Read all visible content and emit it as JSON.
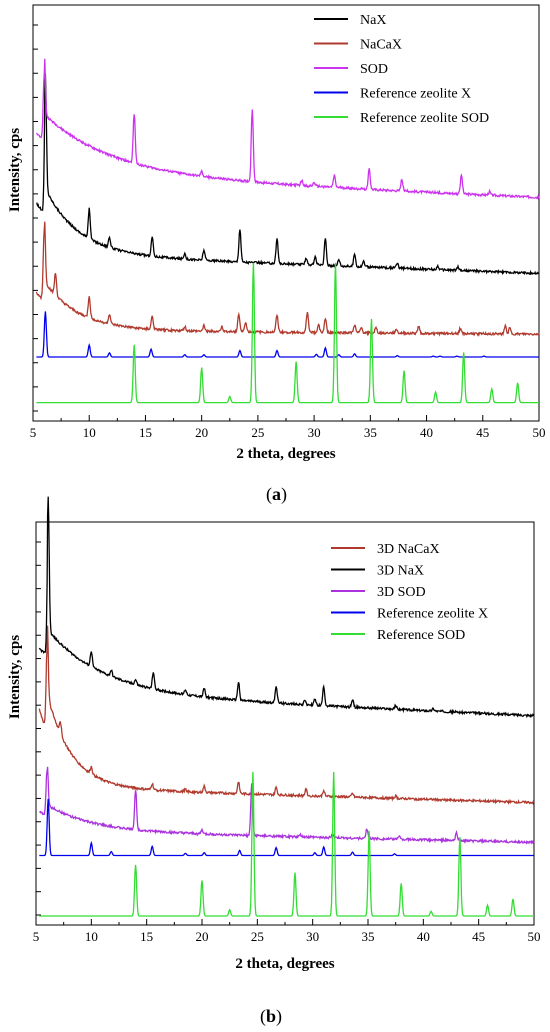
{
  "chart_data": [
    {
      "panel_label": "(a)",
      "panel_letter": "a",
      "type": "line",
      "xlabel": "2 theta, degrees",
      "ylabel": "Intensity, cps",
      "xlim": [
        5,
        50
      ],
      "xticks": [
        5,
        10,
        15,
        20,
        25,
        30,
        35,
        40,
        45,
        50
      ],
      "y_ticks_labeled": false,
      "legend_position": "top-right",
      "series": [
        {
          "name": "NaX",
          "color": "#000000",
          "offset": 0.37,
          "scale": 0.3,
          "base_decay": 0.18,
          "decay_len": 3.0,
          "slope": -0.05,
          "peaks": [
            [
              6.1,
              1.0
            ],
            [
              10.0,
              0.26
            ],
            [
              11.8,
              0.09
            ],
            [
              15.6,
              0.17
            ],
            [
              18.5,
              0.05
            ],
            [
              20.2,
              0.09
            ],
            [
              23.4,
              0.29
            ],
            [
              26.7,
              0.22
            ],
            [
              29.3,
              0.06
            ],
            [
              30.1,
              0.07
            ],
            [
              31.0,
              0.24
            ],
            [
              32.2,
              0.06
            ],
            [
              33.6,
              0.11
            ],
            [
              34.4,
              0.05
            ],
            [
              37.4,
              0.04
            ],
            [
              41.0,
              0.03
            ],
            [
              42.8,
              0.03
            ]
          ]
        },
        {
          "name": "NaCaX",
          "color": "#b03a2e",
          "offset": 0.17,
          "scale": 0.26,
          "base_decay": 0.13,
          "decay_len": 3.0,
          "slope": -0.01,
          "peaks": [
            [
              6.0,
              0.72
            ],
            [
              7.0,
              0.22
            ],
            [
              10.0,
              0.22
            ],
            [
              11.8,
              0.1
            ],
            [
              15.6,
              0.13
            ],
            [
              18.5,
              0.04
            ],
            [
              20.2,
              0.06
            ],
            [
              21.8,
              0.05
            ],
            [
              23.3,
              0.18
            ],
            [
              23.9,
              0.1
            ],
            [
              26.7,
              0.18
            ],
            [
              29.4,
              0.2
            ],
            [
              30.4,
              0.08
            ],
            [
              31.0,
              0.14
            ],
            [
              33.6,
              0.08
            ],
            [
              34.2,
              0.05
            ],
            [
              35.5,
              0.05
            ],
            [
              37.3,
              0.04
            ],
            [
              39.3,
              0.07
            ],
            [
              43.0,
              0.05
            ],
            [
              47.0,
              0.08
            ],
            [
              47.4,
              0.06
            ]
          ]
        },
        {
          "name": "SOD",
          "color": "#cc33ee",
          "offset": 0.58,
          "scale": 0.31,
          "base_decay": 0.16,
          "decay_len": 6.0,
          "slope": -0.06,
          "peaks": [
            [
              6.0,
              0.55
            ],
            [
              14.0,
              0.42
            ],
            [
              20.0,
              0.04
            ],
            [
              24.5,
              0.62
            ],
            [
              28.9,
              0.04
            ],
            [
              30.0,
              0.03
            ],
            [
              31.8,
              0.1
            ],
            [
              34.9,
              0.17
            ],
            [
              37.8,
              0.1
            ],
            [
              43.1,
              0.16
            ],
            [
              45.6,
              0.03
            ]
          ]
        },
        {
          "name": "Reference zeolite X",
          "color": "#0000ee",
          "offset": 0.1,
          "scale": 0.12,
          "base_decay": 0.0,
          "decay_len": 3.0,
          "slope": 0.0,
          "peaks": [
            [
              6.1,
              1.0
            ],
            [
              10.0,
              0.26
            ],
            [
              11.8,
              0.09
            ],
            [
              15.5,
              0.17
            ],
            [
              18.5,
              0.05
            ],
            [
              20.2,
              0.05
            ],
            [
              23.4,
              0.14
            ],
            [
              26.7,
              0.14
            ],
            [
              30.2,
              0.06
            ],
            [
              31.0,
              0.2
            ],
            [
              32.2,
              0.05
            ],
            [
              33.6,
              0.07
            ],
            [
              37.4,
              0.03
            ],
            [
              40.6,
              0.02
            ],
            [
              41.2,
              0.02
            ],
            [
              42.7,
              0.02
            ],
            [
              45.1,
              0.02
            ]
          ]
        },
        {
          "name": "Reference zeolite SOD",
          "color": "#33dd33",
          "offset": -0.02,
          "scale": 0.4,
          "base_decay": 0.0,
          "decay_len": 3.0,
          "slope": 0.0,
          "peaks": [
            [
              14.0,
              0.38
            ],
            [
              20.0,
              0.23
            ],
            [
              22.5,
              0.04
            ],
            [
              24.6,
              0.92
            ],
            [
              28.4,
              0.27
            ],
            [
              31.9,
              0.92
            ],
            [
              35.1,
              0.55
            ],
            [
              38.0,
              0.21
            ],
            [
              40.8,
              0.07
            ],
            [
              43.3,
              0.33
            ],
            [
              45.8,
              0.09
            ],
            [
              48.1,
              0.13
            ]
          ]
        }
      ]
    },
    {
      "panel_label": "(b)",
      "panel_letter": "b",
      "type": "line",
      "xlabel": "2 theta, degrees",
      "ylabel": "Intensity, cps",
      "xlim": [
        5,
        50
      ],
      "xticks": [
        5,
        10,
        15,
        20,
        25,
        30,
        35,
        40,
        45,
        50
      ],
      "y_ticks_labeled": false,
      "legend_position": "top-right",
      "series": [
        {
          "name": "3D NaCaX",
          "color": "#b03a2e",
          "offset": 0.34,
          "scale": 0.32,
          "base_decay": 0.25,
          "decay_len": 2.2,
          "slope": -0.04,
          "peaks": [
            [
              6.0,
              0.68
            ],
            [
              7.2,
              0.1
            ],
            [
              10.0,
              0.06
            ],
            [
              15.5,
              0.05
            ],
            [
              18.5,
              0.02
            ],
            [
              20.2,
              0.05
            ],
            [
              23.3,
              0.1
            ],
            [
              26.7,
              0.06
            ],
            [
              29.4,
              0.05
            ],
            [
              31.0,
              0.05
            ],
            [
              33.6,
              0.03
            ],
            [
              37.5,
              0.02
            ]
          ]
        },
        {
          "name": "3D NaX",
          "color": "#000000",
          "offset": 0.59,
          "scale": 0.32,
          "base_decay": 0.17,
          "decay_len": 5.0,
          "slope": -0.06,
          "peaks": [
            [
              6.1,
              1.1
            ],
            [
              10.0,
              0.13
            ],
            [
              11.8,
              0.05
            ],
            [
              14.0,
              0.04
            ],
            [
              15.6,
              0.14
            ],
            [
              18.5,
              0.04
            ],
            [
              20.2,
              0.07
            ],
            [
              23.3,
              0.15
            ],
            [
              26.7,
              0.14
            ],
            [
              29.3,
              0.04
            ],
            [
              30.2,
              0.05
            ],
            [
              31.0,
              0.16
            ],
            [
              33.6,
              0.06
            ],
            [
              37.5,
              0.03
            ],
            [
              40.9,
              0.02
            ]
          ]
        },
        {
          "name": "3D SOD",
          "color": "#aa33dd",
          "offset": 0.225,
          "scale": 0.25,
          "base_decay": 0.07,
          "decay_len": 4.0,
          "slope": -0.03,
          "peaks": [
            [
              6.0,
              0.48
            ],
            [
              14.0,
              0.42
            ],
            [
              20.0,
              0.04
            ],
            [
              24.5,
              0.55
            ],
            [
              28.9,
              0.02
            ],
            [
              31.8,
              0.04
            ],
            [
              34.9,
              0.1
            ],
            [
              37.8,
              0.04
            ],
            [
              43.0,
              0.08
            ]
          ]
        },
        {
          "name": "Reference zeolite X",
          "color": "#0000ee",
          "offset": 0.16,
          "scale": 0.15,
          "base_decay": 0.0,
          "decay_len": 3.0,
          "slope": 0.0,
          "peaks": [
            [
              6.1,
              1.0
            ],
            [
              10.0,
              0.22
            ],
            [
              11.8,
              0.07
            ],
            [
              15.5,
              0.16
            ],
            [
              18.5,
              0.04
            ],
            [
              20.2,
              0.05
            ],
            [
              23.4,
              0.09
            ],
            [
              26.7,
              0.14
            ],
            [
              30.2,
              0.05
            ],
            [
              31.0,
              0.15
            ],
            [
              33.6,
              0.06
            ],
            [
              37.4,
              0.03
            ]
          ]
        },
        {
          "name": "Reference SOD",
          "color": "#33dd33",
          "offset": 0.0,
          "scale": 0.41,
          "base_decay": 0.0,
          "decay_len": 3.0,
          "slope": 0.0,
          "peaks": [
            [
              14.0,
              0.33
            ],
            [
              20.0,
              0.23
            ],
            [
              22.5,
              0.04
            ],
            [
              24.6,
              0.93
            ],
            [
              28.4,
              0.28
            ],
            [
              31.9,
              0.93
            ],
            [
              35.1,
              0.55
            ],
            [
              38.0,
              0.21
            ],
            [
              40.7,
              0.03
            ],
            [
              43.3,
              0.51
            ],
            [
              45.8,
              0.07
            ],
            [
              48.1,
              0.11
            ]
          ]
        }
      ]
    }
  ]
}
